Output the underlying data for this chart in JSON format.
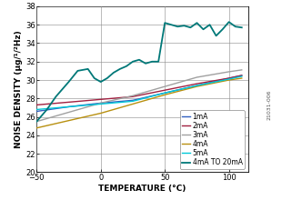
{
  "xlabel": "TEMPERATURE (°C)",
  "ylabel": "NOISE DENSITY (μg/¹/²Hz)",
  "xlim": [
    -50,
    115
  ],
  "ylim": [
    20,
    38
  ],
  "xticks": [
    -50,
    0,
    50,
    100
  ],
  "yticks": [
    20,
    22,
    24,
    26,
    28,
    30,
    32,
    34,
    36,
    38
  ],
  "series": {
    "1mA": {
      "color": "#3060c0",
      "x": [
        -50,
        -25,
        0,
        25,
        50,
        75,
        100,
        110
      ],
      "y": [
        26.6,
        27.1,
        27.5,
        27.8,
        28.6,
        29.4,
        30.2,
        30.5
      ]
    },
    "2mA": {
      "color": "#a02040",
      "x": [
        -50,
        -25,
        0,
        25,
        50,
        75,
        100,
        110
      ],
      "y": [
        27.3,
        27.6,
        27.9,
        28.2,
        28.9,
        29.6,
        30.2,
        30.5
      ]
    },
    "3mA": {
      "color": "#a0a0a0",
      "x": [
        -50,
        -25,
        0,
        25,
        50,
        75,
        100,
        110
      ],
      "y": [
        25.5,
        26.5,
        27.5,
        28.3,
        29.3,
        30.3,
        30.9,
        31.1
      ]
    },
    "4mA": {
      "color": "#b89010",
      "x": [
        -50,
        -25,
        0,
        25,
        50,
        75,
        100,
        110
      ],
      "y": [
        24.8,
        25.6,
        26.4,
        27.4,
        28.4,
        29.3,
        30.0,
        30.2
      ]
    },
    "5mA": {
      "color": "#00c8d8",
      "x": [
        -50,
        -25,
        0,
        25,
        50,
        75,
        100,
        110
      ],
      "y": [
        26.8,
        27.1,
        27.4,
        27.7,
        28.6,
        29.4,
        30.1,
        30.4
      ]
    },
    "4mA TO 20mA": {
      "color": "#007878",
      "x": [
        -50,
        -42,
        -35,
        -25,
        -18,
        -10,
        -5,
        0,
        5,
        10,
        15,
        20,
        25,
        30,
        35,
        40,
        45,
        50,
        55,
        60,
        65,
        70,
        75,
        80,
        85,
        90,
        95,
        100,
        105,
        110
      ],
      "y": [
        25.5,
        26.8,
        28.2,
        29.8,
        31.0,
        31.2,
        30.2,
        29.8,
        30.2,
        30.8,
        31.2,
        31.5,
        32.0,
        32.2,
        31.8,
        32.0,
        32.0,
        36.2,
        36.0,
        35.8,
        35.9,
        35.7,
        36.2,
        35.5,
        36.0,
        34.8,
        35.5,
        36.3,
        35.8,
        35.7
      ]
    }
  },
  "legend_order": [
    "1mA",
    "2mA",
    "3mA",
    "4mA",
    "5mA",
    "4mA TO 20mA"
  ],
  "bg_color": "#ffffff",
  "font_size_label": 6.5,
  "font_size_tick": 6,
  "font_size_legend": 5.5,
  "watermark": "21031-006"
}
